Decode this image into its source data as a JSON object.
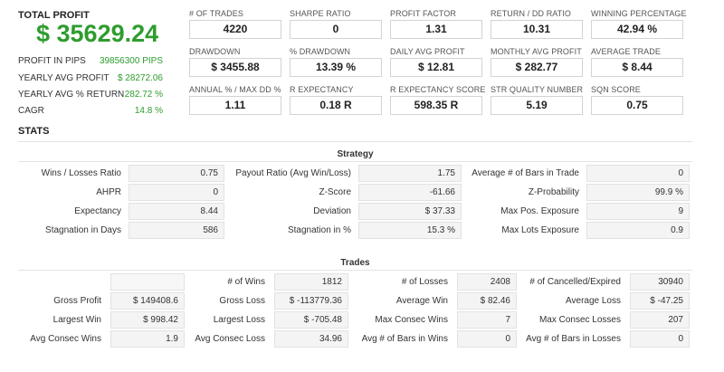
{
  "summary": {
    "total_profit_label": "TOTAL PROFIT",
    "total_profit_value": "$ 35629.24",
    "rows": [
      {
        "label": "PROFIT IN PIPS",
        "value": "39856300 PIPS"
      },
      {
        "label": "YEARLY AVG PROFIT",
        "value": "$ 28272.06"
      },
      {
        "label": "YEARLY AVG % RETURN",
        "value": "282.72 %"
      },
      {
        "label": "CAGR",
        "value": "14.8 %"
      }
    ]
  },
  "metrics": [
    {
      "label": "# OF TRADES",
      "value": "4220"
    },
    {
      "label": "SHARPE RATIO",
      "value": "0"
    },
    {
      "label": "PROFIT FACTOR",
      "value": "1.31"
    },
    {
      "label": "RETURN / DD RATIO",
      "value": "10.31"
    },
    {
      "label": "WINNING PERCENTAGE",
      "value": "42.94 %"
    },
    {
      "label": "DRAWDOWN",
      "value": "$ 3455.88"
    },
    {
      "label": "% DRAWDOWN",
      "value": "13.39 %"
    },
    {
      "label": "DAILY AVG PROFIT",
      "value": "$ 12.81"
    },
    {
      "label": "MONTHLY AVG PROFIT",
      "value": "$ 282.77"
    },
    {
      "label": "AVERAGE TRADE",
      "value": "$ 8.44"
    },
    {
      "label": "ANNUAL % / MAX DD %",
      "value": "1.11"
    },
    {
      "label": "R EXPECTANCY",
      "value": "0.18 R"
    },
    {
      "label": "R EXPECTANCY SCORE",
      "value": "598.35 R"
    },
    {
      "label": "STR QUALITY NUMBER",
      "value": "5.19"
    },
    {
      "label": "SQN SCORE",
      "value": "0.75"
    }
  ],
  "stats_title": "STATS",
  "strategy": {
    "title": "Strategy",
    "rows": [
      [
        {
          "label": "Wins / Losses Ratio",
          "value": "0.75"
        },
        {
          "label": "Payout Ratio (Avg Win/Loss)",
          "value": "1.75"
        },
        {
          "label": "Average # of Bars in Trade",
          "value": "0"
        }
      ],
      [
        {
          "label": "AHPR",
          "value": "0"
        },
        {
          "label": "Z-Score",
          "value": "-61.66"
        },
        {
          "label": "Z-Probability",
          "value": "99.9 %"
        }
      ],
      [
        {
          "label": "Expectancy",
          "value": "8.44"
        },
        {
          "label": "Deviation",
          "value": "$ 37.33"
        },
        {
          "label": "Max Pos. Exposure",
          "value": "9"
        }
      ],
      [
        {
          "label": "Stagnation in Days",
          "value": "586"
        },
        {
          "label": "Stagnation in %",
          "value": "15.3 %"
        },
        {
          "label": "Max Lots Exposure",
          "value": "0.9"
        }
      ]
    ]
  },
  "trades": {
    "title": "Trades",
    "rows": [
      [
        {
          "label": "",
          "value": ""
        },
        {
          "label": "# of Wins",
          "value": "1812"
        },
        {
          "label": "# of Losses",
          "value": "2408"
        },
        {
          "label": "# of Cancelled/Expired",
          "value": "30940"
        }
      ],
      [
        {
          "label": "Gross Profit",
          "value": "$ 149408.6"
        },
        {
          "label": "Gross Loss",
          "value": "$ -113779.36"
        },
        {
          "label": "Average Win",
          "value": "$ 82.46"
        },
        {
          "label": "Average Loss",
          "value": "$ -47.25"
        }
      ],
      [
        {
          "label": "Largest Win",
          "value": "$ 998.42"
        },
        {
          "label": "Largest Loss",
          "value": "$ -705.48"
        },
        {
          "label": "Max Consec Wins",
          "value": "7"
        },
        {
          "label": "Max Consec Losses",
          "value": "207"
        }
      ],
      [
        {
          "label": "Avg Consec Wins",
          "value": "1.9"
        },
        {
          "label": "Avg Consec Loss",
          "value": "34.96"
        },
        {
          "label": "Avg # of Bars in Wins",
          "value": "0"
        },
        {
          "label": "Avg # of Bars in Losses",
          "value": "0"
        }
      ]
    ]
  }
}
